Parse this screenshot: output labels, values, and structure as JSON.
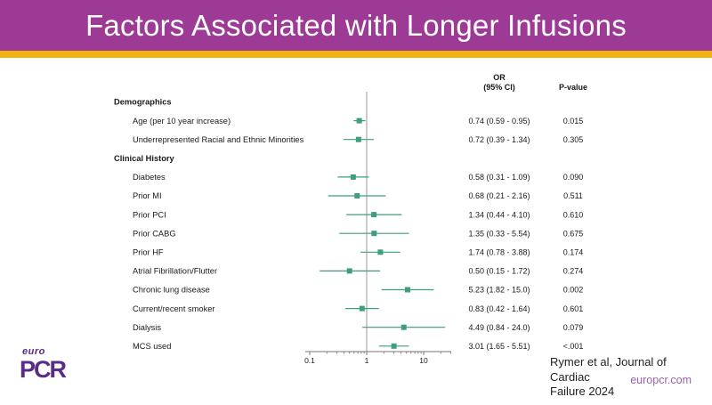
{
  "title": "Factors Associated with Longer Infusions",
  "table_headers": {
    "or_line1": "OR",
    "or_line2": "(95% CI)",
    "pvalue": "P-value"
  },
  "chart_data": {
    "type": "forest",
    "xscale": "log",
    "x_ticks": [
      0.1,
      1,
      10
    ],
    "x_tick_labels": [
      "0.1",
      "1",
      "10"
    ],
    "x_range": [
      0.08,
      30
    ],
    "reference_line": 1,
    "rows": [
      {
        "type": "group",
        "label": "Demographics"
      },
      {
        "type": "item",
        "label": "Age (per 10 year increase)",
        "or": 0.74,
        "ci_low": 0.59,
        "ci_high": 0.95,
        "or_ci_text": "0.74 (0.59 - 0.95)",
        "p_value": "0.015"
      },
      {
        "type": "item",
        "label": "Underrepresented Racial and Ethnic Minorities",
        "or": 0.72,
        "ci_low": 0.39,
        "ci_high": 1.34,
        "or_ci_text": "0.72 (0.39 - 1.34)",
        "p_value": "0.305"
      },
      {
        "type": "group",
        "label": "Clinical History"
      },
      {
        "type": "item",
        "label": "Diabetes",
        "or": 0.58,
        "ci_low": 0.31,
        "ci_high": 1.09,
        "or_ci_text": "0.58 (0.31 - 1.09)",
        "p_value": "0.090"
      },
      {
        "type": "item",
        "label": "Prior MI",
        "or": 0.68,
        "ci_low": 0.21,
        "ci_high": 2.16,
        "or_ci_text": "0.68 (0.21 - 2.16)",
        "p_value": "0.511"
      },
      {
        "type": "item",
        "label": "Prior PCI",
        "or": 1.34,
        "ci_low": 0.44,
        "ci_high": 4.1,
        "or_ci_text": "1.34 (0.44 - 4.10)",
        "p_value": "0.610"
      },
      {
        "type": "item",
        "label": "Prior CABG",
        "or": 1.35,
        "ci_low": 0.33,
        "ci_high": 5.54,
        "or_ci_text": "1.35 (0.33 - 5.54)",
        "p_value": "0.675"
      },
      {
        "type": "item",
        "label": "Prior HF",
        "or": 1.74,
        "ci_low": 0.78,
        "ci_high": 3.88,
        "or_ci_text": "1.74 (0.78 - 3.88)",
        "p_value": "0.174"
      },
      {
        "type": "item",
        "label": "Atrial Fibrillation/Flutter",
        "or": 0.5,
        "ci_low": 0.15,
        "ci_high": 1.72,
        "or_ci_text": "0.50 (0.15 - 1.72)",
        "p_value": "0.274"
      },
      {
        "type": "item",
        "label": "Chronic lung disease",
        "or": 5.23,
        "ci_low": 1.82,
        "ci_high": 15.0,
        "or_ci_text": "5.23 (1.82 - 15.0)",
        "p_value": "0.002"
      },
      {
        "type": "item",
        "label": "Current/recent smoker",
        "or": 0.83,
        "ci_low": 0.42,
        "ci_high": 1.64,
        "or_ci_text": "0.83 (0.42 - 1.64)",
        "p_value": "0.601"
      },
      {
        "type": "item",
        "label": "Dialysis",
        "or": 4.49,
        "ci_low": 0.84,
        "ci_high": 24.0,
        "or_ci_text": "4.49 (0.84 - 24.0)",
        "p_value": "0.079"
      },
      {
        "type": "item",
        "label": "MCS used",
        "or": 3.01,
        "ci_low": 1.65,
        "ci_high": 5.51,
        "or_ci_text": "3.01 (1.65 - 5.51)",
        "p_value": "<.001"
      }
    ]
  },
  "footer": {
    "citation_line1": "Rymer et al, Journal of Cardiac",
    "citation_line2": "Failure 2024",
    "website": "europcr.com",
    "logo_top": "euro",
    "logo_main": "PCR"
  },
  "colors": {
    "header_purple": "#9d3a95",
    "gold": "#f1b30e",
    "marker_green": "#3f9e7c",
    "reference_gray": "#aaaaaa",
    "logo_purple": "#5b2c86",
    "website_purple": "#9d62ae"
  }
}
